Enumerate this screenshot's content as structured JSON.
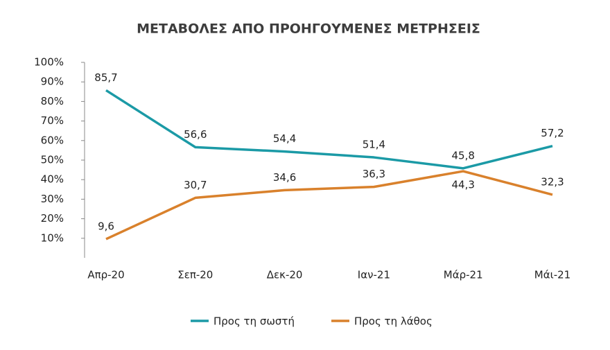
{
  "chart_data": {
    "type": "line",
    "title": "ΜΕΤΑΒΟΛΕΣ ΑΠΟ ΠΡΟΗΓΟΥΜΕΝΕΣ ΜΕΤΡΗΣΕΙΣ",
    "categories": [
      "Απρ-20",
      "Σεπ-20",
      "Δεκ-20",
      "Ιαν-21",
      "Μάρ-21",
      "Μάι-21"
    ],
    "series": [
      {
        "name": "Προς τη σωστή",
        "color": "#1b9aa6",
        "values": [
          85.7,
          56.6,
          54.4,
          51.4,
          45.8,
          57.2
        ],
        "value_labels": [
          "85,7",
          "56,6",
          "54,4",
          "51,4",
          "45,8",
          "57,2"
        ]
      },
      {
        "name": "Προς τη λάθος",
        "color": "#d9812c",
        "values": [
          9.6,
          30.7,
          34.6,
          36.3,
          44.3,
          32.3
        ],
        "value_labels": [
          "9,6",
          "30,7",
          "34,6",
          "36,3",
          "44,3",
          "32,3"
        ]
      }
    ],
    "ylim": [
      0,
      100
    ],
    "yticks": [
      {
        "value": 10,
        "label": "10%"
      },
      {
        "value": 20,
        "label": "20%"
      },
      {
        "value": 30,
        "label": "30%"
      },
      {
        "value": 40,
        "label": "40%"
      },
      {
        "value": 50,
        "label": "50%"
      },
      {
        "value": 60,
        "label": "60%"
      },
      {
        "value": 70,
        "label": "70%"
      },
      {
        "value": 80,
        "label": "80%"
      },
      {
        "value": 90,
        "label": "90%"
      },
      {
        "value": 100,
        "label": "100%"
      }
    ],
    "legend": "bottom"
  }
}
